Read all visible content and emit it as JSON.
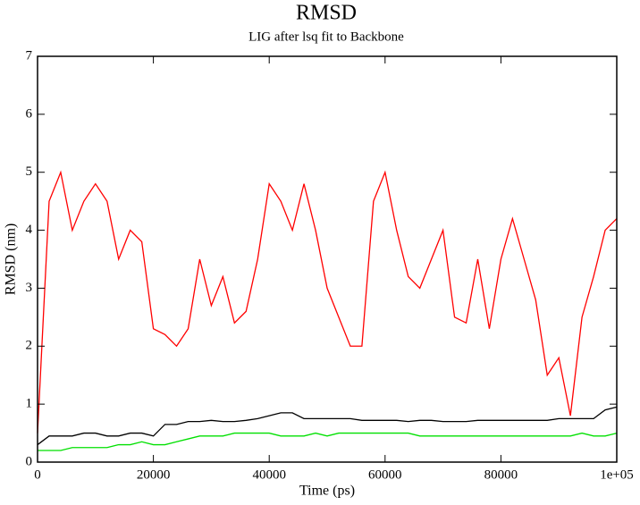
{
  "chart_data": {
    "type": "line",
    "title": "RMSD",
    "subtitle": "LIG after lsq fit to Backbone",
    "x_label": "Time (ps)",
    "y_label": "RMSD (nm)",
    "x": [
      0,
      2000,
      4000,
      6000,
      8000,
      10000,
      12000,
      14000,
      16000,
      18000,
      20000,
      22000,
      24000,
      26000,
      28000,
      30000,
      32000,
      34000,
      36000,
      38000,
      40000,
      42000,
      44000,
      46000,
      48000,
      50000,
      52000,
      54000,
      56000,
      58000,
      60000,
      62000,
      64000,
      66000,
      68000,
      70000,
      72000,
      74000,
      76000,
      78000,
      80000,
      82000,
      84000,
      86000,
      88000,
      90000,
      92000,
      94000,
      96000,
      98000,
      100000
    ],
    "series": [
      {
        "color": "#ff0000",
        "values": [
          0.5,
          4.5,
          5.0,
          4.0,
          4.5,
          4.8,
          4.5,
          3.5,
          4.0,
          3.8,
          2.3,
          2.2,
          2.0,
          2.3,
          3.5,
          2.7,
          3.2,
          2.4,
          2.6,
          3.5,
          4.8,
          4.5,
          4.0,
          4.8,
          4.0,
          3.0,
          2.5,
          2.0,
          2.0,
          4.5,
          5.0,
          4.0,
          3.2,
          3.0,
          3.5,
          4.0,
          2.5,
          2.4,
          3.5,
          2.3,
          3.5,
          4.2,
          3.5,
          2.8,
          1.5,
          1.8,
          0.8,
          2.5,
          3.2,
          4.0,
          4.2
        ]
      },
      {
        "color": "#000000",
        "values": [
          0.3,
          0.45,
          0.45,
          0.45,
          0.5,
          0.5,
          0.45,
          0.45,
          0.5,
          0.5,
          0.45,
          0.65,
          0.65,
          0.7,
          0.7,
          0.72,
          0.7,
          0.7,
          0.72,
          0.75,
          0.8,
          0.85,
          0.85,
          0.75,
          0.75,
          0.75,
          0.75,
          0.75,
          0.72,
          0.72,
          0.72,
          0.72,
          0.7,
          0.72,
          0.72,
          0.7,
          0.7,
          0.7,
          0.72,
          0.72,
          0.72,
          0.72,
          0.72,
          0.72,
          0.72,
          0.75,
          0.75,
          0.75,
          0.75,
          0.9,
          0.95
        ]
      },
      {
        "color": "#00e000",
        "values": [
          0.2,
          0.2,
          0.2,
          0.25,
          0.25,
          0.25,
          0.25,
          0.3,
          0.3,
          0.35,
          0.3,
          0.3,
          0.35,
          0.4,
          0.45,
          0.45,
          0.45,
          0.5,
          0.5,
          0.5,
          0.5,
          0.45,
          0.45,
          0.45,
          0.5,
          0.45,
          0.5,
          0.5,
          0.5,
          0.5,
          0.5,
          0.5,
          0.5,
          0.45,
          0.45,
          0.45,
          0.45,
          0.45,
          0.45,
          0.45,
          0.45,
          0.45,
          0.45,
          0.45,
          0.45,
          0.45,
          0.45,
          0.5,
          0.45,
          0.45,
          0.5
        ]
      }
    ],
    "xlim": [
      0,
      100000
    ],
    "xticks": [
      0,
      20000,
      40000,
      60000,
      80000,
      {
        "value": 100000,
        "label": "1e+05"
      }
    ],
    "ylim": [
      0,
      7
    ],
    "yticks": [
      0,
      1,
      2,
      3,
      4,
      5,
      6,
      7
    ]
  }
}
